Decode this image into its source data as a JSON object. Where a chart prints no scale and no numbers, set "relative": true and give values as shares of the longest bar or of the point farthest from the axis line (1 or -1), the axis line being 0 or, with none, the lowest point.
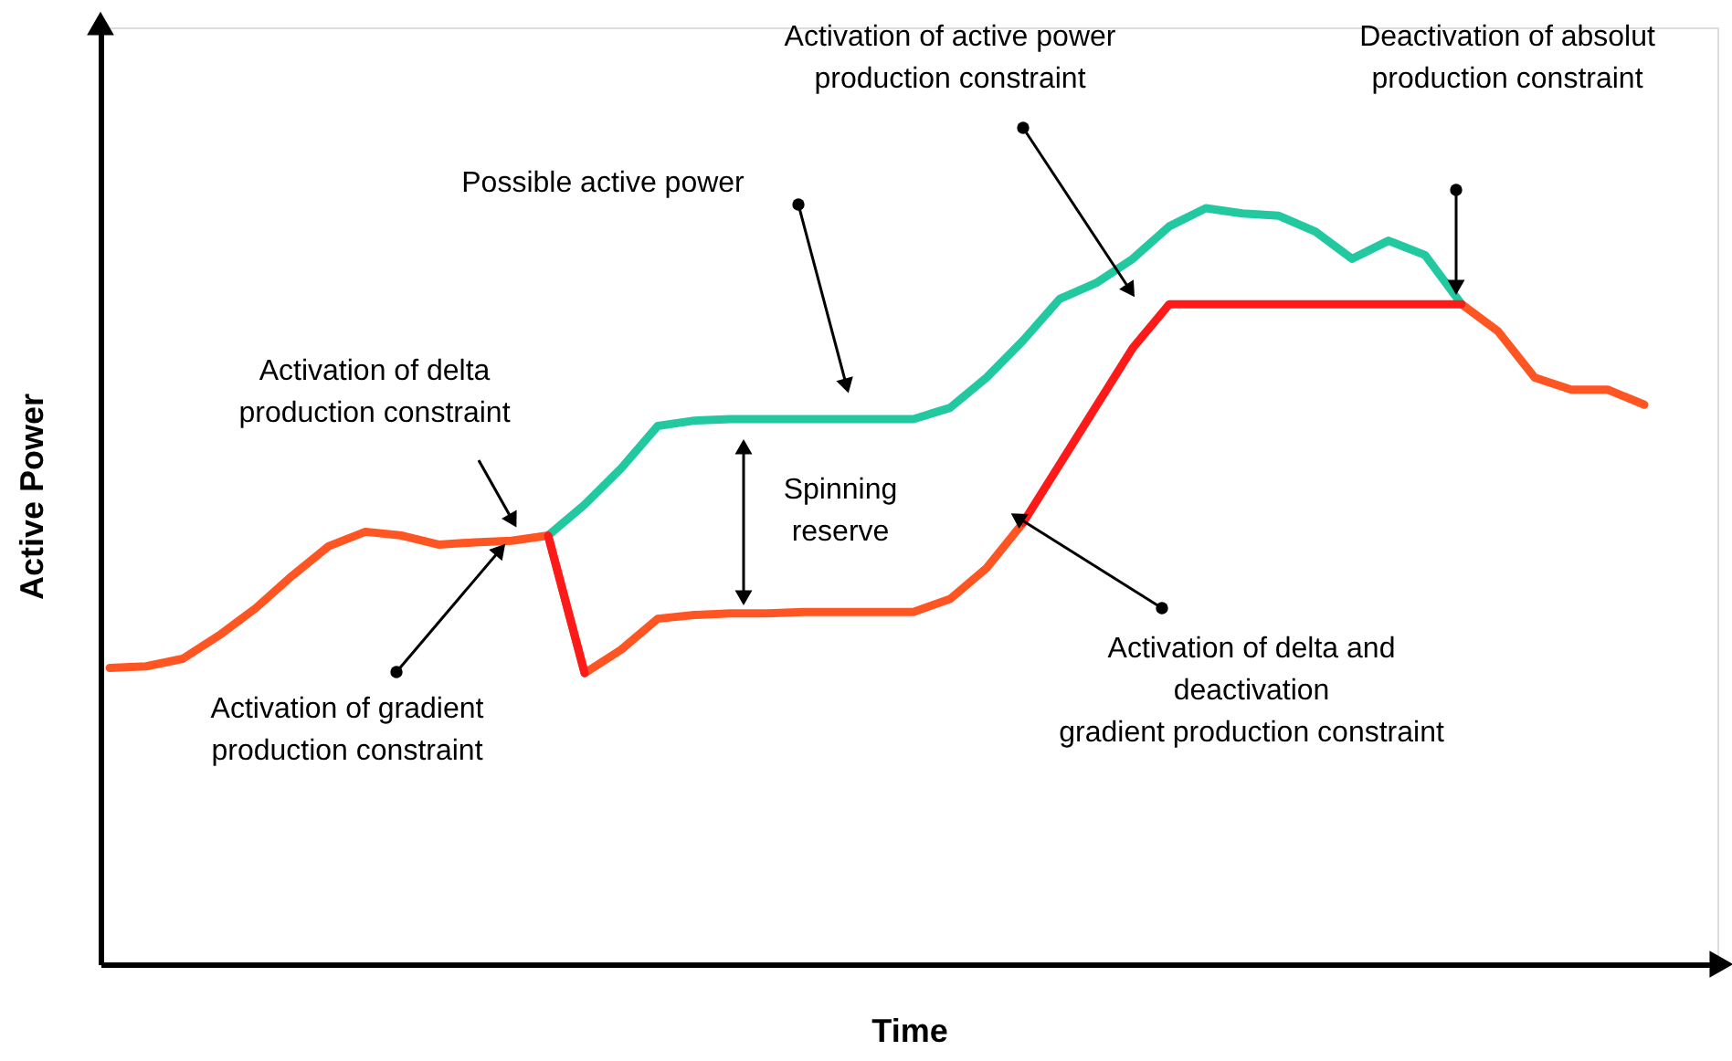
{
  "chart_data": {
    "type": "line",
    "relative": true,
    "xlabel": "Time",
    "ylabel": "Active Power",
    "grid": false,
    "tick_labels": false,
    "line_style": "solid",
    "marker": "none",
    "categories": [
      null,
      null,
      null,
      null,
      null,
      null,
      null,
      null,
      null,
      null,
      null,
      null,
      null,
      null,
      null,
      null,
      null,
      null,
      null,
      null,
      null,
      null,
      null,
      null,
      null,
      null,
      null,
      null,
      null,
      null,
      null,
      null,
      null,
      null,
      null,
      null,
      null,
      null,
      null,
      null,
      null,
      null,
      null
    ],
    "series": [
      {
        "color": "#ff5522",
        "values": [
          0.392,
          0.394,
          0.404,
          0.435,
          0.471,
          0.514,
          0.553,
          0.572,
          0.567,
          0.555,
          0.558,
          0.56,
          0.567,
          0.385,
          0.416,
          0.457,
          0.462,
          0.464,
          0.464,
          0.466,
          0.466,
          0.466,
          0.466,
          0.483,
          0.524,
          0.584,
          null,
          null,
          null,
          null,
          null,
          null,
          null,
          null,
          null,
          null,
          null,
          0.873,
          0.837,
          0.776,
          0.76,
          0.76,
          0.74
        ]
      },
      {
        "color": "#22c8a0",
        "values": [
          null,
          null,
          null,
          null,
          null,
          null,
          null,
          null,
          null,
          null,
          null,
          null,
          0.567,
          0.608,
          0.656,
          0.712,
          0.719,
          0.721,
          0.721,
          0.721,
          0.721,
          0.721,
          0.721,
          0.736,
          0.776,
          0.825,
          0.88,
          0.901,
          0.933,
          0.976,
          1.0,
          0.993,
          0.99,
          0.969,
          0.933,
          0.957,
          0.938,
          0.873,
          null,
          null,
          null,
          null,
          null
        ]
      },
      {
        "color": "#ff1a1a",
        "values": [
          null,
          null,
          null,
          null,
          null,
          null,
          null,
          null,
          null,
          null,
          null,
          null,
          0.567,
          0.385,
          null,
          null,
          null,
          null,
          null,
          null,
          null,
          null,
          null,
          null,
          null,
          0.584,
          0.661,
          0.738,
          0.815,
          0.873,
          0.873,
          0.873,
          0.873,
          0.873,
          0.873,
          0.873,
          0.873,
          0.873,
          null,
          null,
          null,
          null,
          null
        ]
      }
    ],
    "annotations": [
      "Possible active power",
      "Activation of active power\nproduction constraint",
      "Deactivation of absolut\nproduction constraint",
      "Activation of delta\nproduction constraint",
      "Spinning\nreserve",
      "Activation of gradient\nproduction constraint",
      "Activation of delta and\ndeactivation\ngradient production constraint"
    ]
  }
}
